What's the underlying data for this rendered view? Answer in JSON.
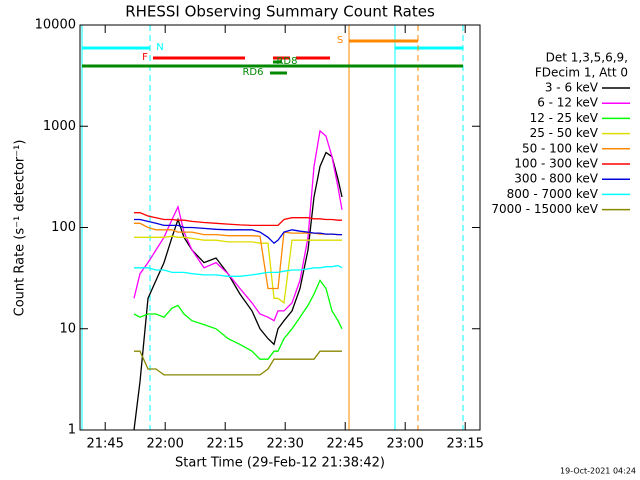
{
  "chart_data": {
    "type": "line",
    "title": "RHESSI Observing Summary Count Rates",
    "xlabel": "Start Time (29-Feb-12 21:38:42)",
    "ylabel": "Count Rate (s⁻¹ detector⁻¹)",
    "legend_header": [
      "Det 1,3,5,6,9,",
      "FDecim 1, Att 0"
    ],
    "footer": "19-Oct-2021 04:24",
    "log_y": true,
    "xlim": [
      0,
      100
    ],
    "ylim": [
      1,
      10000
    ],
    "yticks": [
      1,
      10,
      100,
      1000,
      10000
    ],
    "xticks": [
      {
        "value": 6.3,
        "label": "21:45"
      },
      {
        "value": 21.3,
        "label": "22:00"
      },
      {
        "value": 36.3,
        "label": "22:15"
      },
      {
        "value": 51.3,
        "label": "22:30"
      },
      {
        "value": 66.3,
        "label": "22:45"
      },
      {
        "value": 81.3,
        "label": "23:00"
      },
      {
        "value": 96.3,
        "label": "23:15"
      }
    ],
    "x": [
      13.5,
      15,
      17,
      19,
      21,
      23,
      24.5,
      26,
      28,
      31,
      34,
      37,
      40,
      43,
      45,
      47,
      48.5,
      49.5,
      51,
      53,
      55,
      57,
      58.5,
      60,
      61.5,
      63,
      64.5,
      65.5
    ],
    "series": [
      {
        "name": "3 - 6 keV",
        "color": "#000000",
        "values": [
          1,
          3,
          20,
          30,
          45,
          80,
          120,
          80,
          60,
          45,
          50,
          35,
          22,
          15,
          10,
          8,
          7,
          10,
          12,
          15,
          25,
          60,
          200,
          400,
          550,
          500,
          300,
          200
        ]
      },
      {
        "name": "6 - 12 keV",
        "color": "#ff00ff",
        "values": [
          20,
          35,
          45,
          60,
          80,
          120,
          160,
          90,
          60,
          40,
          45,
          35,
          25,
          18,
          14,
          13,
          12,
          15,
          15,
          18,
          30,
          80,
          400,
          900,
          800,
          500,
          250,
          150
        ]
      },
      {
        "name": "12 - 25 keV",
        "color": "#00ff00",
        "values": [
          14,
          13,
          14,
          14,
          13,
          16,
          17,
          14,
          12,
          11,
          10,
          8,
          7,
          6,
          5,
          5,
          6,
          6,
          8,
          10,
          13,
          17,
          22,
          30,
          25,
          15,
          12,
          10
        ]
      },
      {
        "name": "25 - 50 keV",
        "color": "#dddd00",
        "values": [
          80,
          80,
          80,
          80,
          80,
          82,
          80,
          80,
          78,
          75,
          75,
          72,
          72,
          72,
          70,
          70,
          20,
          20,
          18,
          75,
          75,
          75,
          75,
          75,
          75,
          75,
          75,
          75
        ]
      },
      {
        "name": "50 - 100 keV",
        "color": "#ff8800",
        "values": [
          110,
          110,
          100,
          95,
          95,
          95,
          90,
          90,
          90,
          85,
          85,
          83,
          83,
          83,
          82,
          25,
          25,
          25,
          90,
          88,
          88,
          88,
          88,
          86,
          86,
          86,
          85,
          85
        ]
      },
      {
        "name": "100 - 300 keV",
        "color": "#ff0000",
        "values": [
          140,
          140,
          130,
          125,
          120,
          120,
          118,
          118,
          115,
          112,
          110,
          108,
          106,
          105,
          105,
          105,
          105,
          105,
          120,
          125,
          125,
          125,
          122,
          122,
          120,
          120,
          118,
          118
        ]
      },
      {
        "name": "300 - 800 keV",
        "color": "#0000dd",
        "values": [
          120,
          120,
          115,
          110,
          105,
          105,
          105,
          100,
          100,
          98,
          96,
          95,
          95,
          95,
          90,
          80,
          70,
          75,
          90,
          95,
          92,
          90,
          88,
          88,
          86,
          86,
          85,
          85
        ]
      },
      {
        "name": "800 - 7000 keV",
        "color": "#00ffff",
        "values": [
          40,
          40,
          40,
          38,
          38,
          36,
          36,
          36,
          35,
          34,
          34,
          33,
          33,
          34,
          35,
          36,
          36,
          36,
          37,
          38,
          38,
          39,
          40,
          40,
          41,
          41,
          42,
          40
        ]
      },
      {
        "name": "7000 - 15000 keV",
        "color": "#888800",
        "values": [
          6,
          6,
          4,
          4,
          3.5,
          3.5,
          3.5,
          3.5,
          3.5,
          3.5,
          3.5,
          3.5,
          3.5,
          3.5,
          3.5,
          4,
          5,
          5,
          5,
          5,
          5,
          5,
          5,
          6,
          6,
          6,
          6,
          6
        ]
      }
    ],
    "intervals": [
      {
        "label": "N",
        "color": "#00ffff",
        "start": 0.5,
        "end": 17.5
      },
      {
        "color": "#00ffff",
        "start": 78.75,
        "end": 95.75
      },
      {
        "label": "F",
        "color": "#ff0000",
        "start": 18.25,
        "end": 41.25
      },
      {
        "color": "#ff0000",
        "start": 48.25,
        "end": 52.5
      },
      {
        "color": "#ff0000",
        "start": 54,
        "end": 62.5
      },
      {
        "label": "S",
        "color": "#ff8800",
        "start": 67.25,
        "end": 84.5
      },
      {
        "color": "#008800",
        "start": 0.5,
        "end": 95.75
      },
      {
        "label": "RD6",
        "color": "#008800",
        "start": 47.5,
        "end": 51.75
      },
      {
        "label": "RD8",
        "color": "#008800",
        "start": 48.25,
        "end": 50.5
      }
    ]
  }
}
